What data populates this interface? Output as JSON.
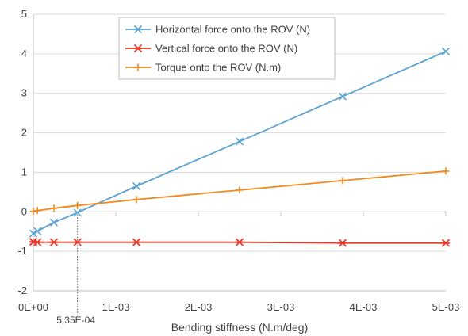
{
  "chart_data": {
    "type": "line",
    "title": "",
    "xlabel": "Bending stiffness (N.m/deg)",
    "ylabel": "",
    "xlim": [
      0,
      0.005
    ],
    "ylim": [
      -2,
      5
    ],
    "x_ticks": [
      0,
      0.001,
      0.002,
      0.003,
      0.004,
      0.005
    ],
    "x_tick_labels": [
      "0E+00",
      "1E-03",
      "2E-03",
      "3E-03",
      "4E-03",
      "5E-03"
    ],
    "y_ticks": [
      -2,
      -1,
      0,
      1,
      2,
      3,
      4,
      5
    ],
    "y_tick_labels": [
      "-2",
      "-1",
      "0",
      "1",
      "2",
      "3",
      "4",
      "5"
    ],
    "grid": "horizontal",
    "legend_position": "top-center",
    "annotation": {
      "x": 0.000535,
      "label": "5,35E-04",
      "style": "dotted-vertical"
    },
    "series": [
      {
        "name": "Horizontal force onto the ROV (N)",
        "color": "#5ba3d3",
        "marker": "x",
        "x": [
          0,
          5e-05,
          0.00025,
          0.000535,
          0.00125,
          0.0025,
          0.00375,
          0.005
        ],
        "y": [
          -0.55,
          -0.49,
          -0.27,
          -0.02,
          0.65,
          1.78,
          2.92,
          4.06
        ]
      },
      {
        "name": "Vertical force onto the ROV (N)",
        "color": "#e83a2a",
        "marker": "asterisk",
        "x": [
          0,
          5e-05,
          0.00025,
          0.000535,
          0.00125,
          0.0025,
          0.00375,
          0.005
        ],
        "y": [
          -0.76,
          -0.77,
          -0.77,
          -0.77,
          -0.77,
          -0.77,
          -0.79,
          -0.79
        ]
      },
      {
        "name": "Torque onto the ROV (N.m)",
        "color": "#f28a1e",
        "marker": "plus",
        "x": [
          0,
          5e-05,
          0.00025,
          0.000535,
          0.00125,
          0.0025,
          0.00375,
          0.005
        ],
        "y": [
          0.01,
          0.03,
          0.09,
          0.16,
          0.31,
          0.55,
          0.79,
          1.03
        ]
      }
    ]
  }
}
